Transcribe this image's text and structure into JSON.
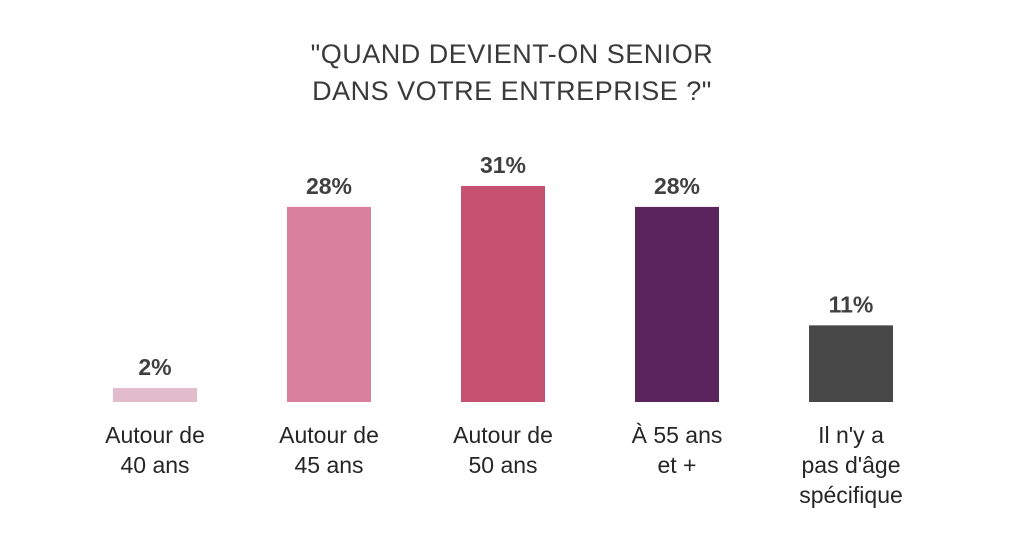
{
  "chart_data": {
    "type": "bar",
    "title_lines": [
      "\"QUAND DEVIENT-ON SENIOR",
      "DANS VOTRE ENTREPRISE ?\""
    ],
    "categories": [
      [
        "Autour de",
        "40 ans"
      ],
      [
        "Autour de",
        "45 ans"
      ],
      [
        "Autour de",
        "50 ans"
      ],
      [
        "À 55 ans",
        "et +"
      ],
      [
        "Il n'y a",
        "pas d'âge",
        "spécifique"
      ]
    ],
    "values": [
      2,
      28,
      31,
      28,
      11
    ],
    "value_labels": [
      "2%",
      "28%",
      "31%",
      "28%",
      "11%"
    ],
    "colors": [
      "#e3bccb",
      "#d9809e",
      "#c65272",
      "#5a245d",
      "#474747"
    ],
    "ylim": [
      0,
      31
    ],
    "grid": false,
    "legend": "none"
  }
}
